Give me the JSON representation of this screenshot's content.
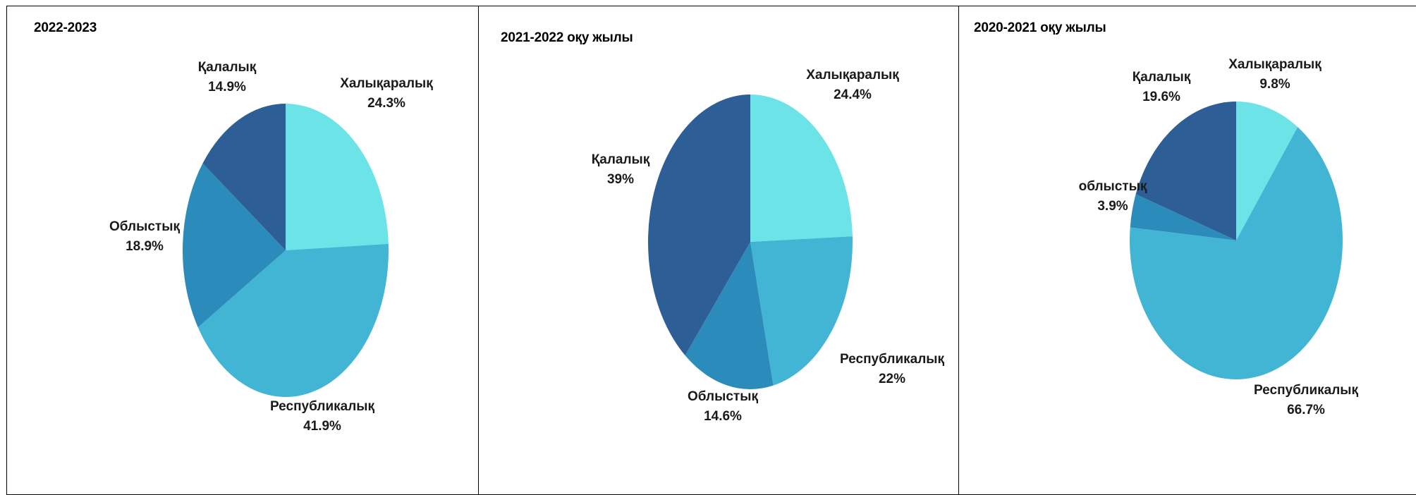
{
  "colors": {
    "Халықаралық": "#6ce3e7",
    "Республикалық": "#42b5d5",
    "Облыстық": "#2b8bba",
    "Қалалық": "#2d5e96",
    "border": "#000000"
  },
  "chart_data": [
    {
      "type": "pie",
      "title": "2022-2023",
      "slices": [
        {
          "label": "Халықаралық",
          "value": 24.3,
          "value_text": "24.3%",
          "color_key": "Халықаралық"
        },
        {
          "label": "Республикалық",
          "value": 41.9,
          "value_text": "41.9%",
          "color_key": "Республикалық"
        },
        {
          "label": "Облыстық",
          "value": 18.9,
          "value_text": "18.9%",
          "color_key": "Облыстық"
        },
        {
          "label": "Қалалық",
          "value": 14.9,
          "value_text": "14.9%",
          "color_key": "Қалалық"
        }
      ],
      "legend": "none"
    },
    {
      "type": "pie",
      "title": "2021-2022 оқу жылы",
      "slices": [
        {
          "label": "Халықаралық",
          "value": 24.4,
          "value_text": "24.4%",
          "color_key": "Халықаралық"
        },
        {
          "label": "Республикалық",
          "value": 22,
          "value_text": "22%",
          "color_key": "Республикалық"
        },
        {
          "label": "Облыстық",
          "value": 14.6,
          "value_text": "14.6%",
          "color_key": "Облыстық"
        },
        {
          "label": "Қалалық",
          "value": 39,
          "value_text": "39%",
          "color_key": "Қалалық"
        }
      ],
      "legend": "none"
    },
    {
      "type": "pie",
      "title": "2020-2021 оқу жылы",
      "slices": [
        {
          "label": "Халықаралық",
          "value": 9.8,
          "value_text": "9.8%",
          "color_key": "Халықаралық"
        },
        {
          "label": "Республикалық",
          "value": 66.7,
          "value_text": "66.7%",
          "color_key": "Республикалық"
        },
        {
          "label": "облыстық",
          "value": 3.9,
          "value_text": "3.9%",
          "color_key": "Облыстық"
        },
        {
          "label": "Қалалық",
          "value": 19.6,
          "value_text": "19.6%",
          "color_key": "Қалалық"
        }
      ],
      "legend": "none"
    }
  ]
}
